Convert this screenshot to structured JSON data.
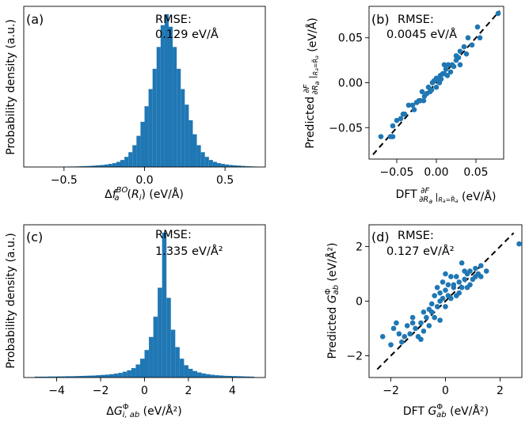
{
  "chart_data": [
    {
      "id": "a",
      "type": "bar",
      "panel_label": "(a)",
      "annotation": [
        "RMSE:",
        "0.129 eV/Å"
      ],
      "xlabel": "Δf_a^{BO}(R_i) (eV/Å)",
      "ylabel": "Probability density (a.u.)",
      "xlim": [
        -0.75,
        0.75
      ],
      "xticks": [
        -0.5,
        0.0,
        0.5
      ],
      "xtick_labels": [
        "−0.5",
        "0.0",
        "0.5"
      ],
      "bin_width": 0.025,
      "bin_start": -0.5,
      "values": [
        0.2,
        0.3,
        0.3,
        0.4,
        0.5,
        0.6,
        0.7,
        0.9,
        1.1,
        1.3,
        1.6,
        2.0,
        2.5,
        3.3,
        4.5,
        6.5,
        9.5,
        14,
        20,
        29,
        39,
        50,
        63,
        77,
        91,
        98,
        90,
        77,
        63,
        50,
        40,
        30,
        21,
        14,
        9.5,
        6.5,
        4.5,
        3.3,
        2.5,
        2.0,
        1.6,
        1.3,
        1.1,
        0.9,
        0.7,
        0.5,
        0.4,
        0.3
      ]
    },
    {
      "id": "b",
      "type": "scatter",
      "panel_label": "(b)",
      "annotation": [
        "RMSE:",
        "0.0045 eV/Å"
      ],
      "xlabel": "DFT ∂F/∂R_a|_{R_a=R̃_a} (eV/Å)",
      "ylabel": "Predicted ∂F/∂R_a|_{R_a=R̃_a} (eV/Å)",
      "xlim": [
        -0.085,
        0.085
      ],
      "ylim": [
        -0.085,
        0.085
      ],
      "xticks": [
        -0.05,
        0.0,
        0.05
      ],
      "xtick_labels": [
        "−0.05",
        "0.00",
        "0.05"
      ],
      "yticks": [
        -0.05,
        0.0,
        0.05
      ],
      "ytick_labels": [
        "−0.05",
        "0.00",
        "0.05"
      ],
      "diagonal": [
        -0.08,
        0.08
      ],
      "points": [
        [
          0.052,
          0.062
        ],
        [
          0.04,
          0.05
        ],
        [
          0.025,
          0.03
        ],
        [
          0.02,
          0.02
        ],
        [
          0.015,
          0.02
        ],
        [
          0.01,
          0.01
        ],
        [
          0.012,
          0.015
        ],
        [
          0.005,
          0.008
        ],
        [
          0.0,
          0.005
        ],
        [
          -0.005,
          0.0
        ],
        [
          -0.01,
          -0.005
        ],
        [
          -0.015,
          -0.015
        ],
        [
          -0.02,
          -0.02
        ],
        [
          -0.025,
          -0.022
        ],
        [
          -0.03,
          -0.025
        ],
        [
          -0.04,
          -0.035
        ],
        [
          -0.05,
          -0.042
        ],
        [
          -0.055,
          -0.048
        ],
        [
          -0.058,
          -0.06
        ],
        [
          -0.055,
          -0.06
        ],
        [
          0.03,
          0.035
        ],
        [
          0.035,
          0.04
        ],
        [
          0.045,
          0.042
        ],
        [
          0.025,
          0.025
        ],
        [
          0.008,
          0.01
        ],
        [
          0.002,
          0.003
        ],
        [
          -0.008,
          -0.01
        ],
        [
          -0.012,
          -0.012
        ],
        [
          -0.018,
          -0.01
        ],
        [
          -0.022,
          -0.02
        ],
        [
          -0.035,
          -0.025
        ],
        [
          -0.045,
          -0.04
        ],
        [
          0.018,
          0.012
        ],
        [
          0.028,
          0.028
        ],
        [
          0.0,
          -0.005
        ],
        [
          -0.003,
          0.002
        ],
        [
          0.006,
          0.004
        ],
        [
          0.014,
          0.008
        ],
        [
          0.022,
          0.018
        ],
        [
          0.038,
          0.032
        ],
        [
          -0.028,
          -0.03
        ],
        [
          -0.016,
          -0.02
        ],
        [
          -0.006,
          -0.008
        ],
        [
          0.004,
          0.0
        ],
        [
          0.03,
          0.02
        ],
        [
          0.01,
          0.02
        ],
        [
          0.078,
          0.077
        ],
        [
          -0.07,
          -0.06
        ],
        [
          -0.042,
          -0.035
        ],
        [
          0.055,
          0.05
        ]
      ]
    },
    {
      "id": "c",
      "type": "bar",
      "panel_label": "(c)",
      "annotation": [
        "RMSE:",
        "1.335 eV/Å²"
      ],
      "xlabel": "ΔG^Φ_{i,ab} (eV/Å²)",
      "ylabel": "Probability density (a.u.)",
      "xlim": [
        -5.5,
        5.5
      ],
      "xticks": [
        -4,
        -2,
        0,
        2,
        4
      ],
      "xtick_labels": [
        "−4",
        "−2",
        "0",
        "2",
        "4"
      ],
      "bin_width": 0.2,
      "bin_start": -5.0,
      "values": [
        0.6,
        0.6,
        0.6,
        0.7,
        0.7,
        0.8,
        0.8,
        0.9,
        0.9,
        1.0,
        1.1,
        1.2,
        1.3,
        1.4,
        1.6,
        1.8,
        2.0,
        2.3,
        2.7,
        3.2,
        4.0,
        5.0,
        6.5,
        9,
        13,
        19,
        28,
        42,
        62,
        100,
        55,
        33,
        21,
        13,
        8.5,
        6,
        4.5,
        3.5,
        2.8,
        2.3,
        1.9,
        1.6,
        1.4,
        1.2,
        1.1,
        1.0,
        0.9,
        0.8,
        0.7,
        0.6
      ]
    },
    {
      "id": "d",
      "type": "scatter",
      "panel_label": "(d)",
      "annotation": [
        "RMSE:",
        "0.127 eV/Å²"
      ],
      "xlabel": "DFT G^Φ_{ab} (eV/Å²)",
      "ylabel": "Predicted G^Φ_{ab} (eV/Å²)",
      "xlim": [
        -2.8,
        2.8
      ],
      "ylim": [
        -2.8,
        2.8
      ],
      "xticks": [
        -2,
        0,
        2
      ],
      "xtick_labels": [
        "−2",
        "0",
        "2"
      ],
      "yticks": [
        -2,
        0,
        2
      ],
      "ytick_labels": [
        "−2",
        "0",
        "2"
      ],
      "diagonal": [
        -2.5,
        2.5
      ],
      "points": [
        [
          2.7,
          2.1
        ],
        [
          1.3,
          1.3
        ],
        [
          1.1,
          1.2
        ],
        [
          0.9,
          1.1
        ],
        [
          0.8,
          1.0
        ],
        [
          0.7,
          0.8
        ],
        [
          0.5,
          0.7
        ],
        [
          0.3,
          0.5
        ],
        [
          0.1,
          0.2
        ],
        [
          -0.1,
          0.1
        ],
        [
          -0.3,
          -0.2
        ],
        [
          -0.5,
          -0.4
        ],
        [
          -0.7,
          -0.6
        ],
        [
          -0.9,
          -0.8
        ],
        [
          -1.1,
          -1.0
        ],
        [
          -1.3,
          -1.2
        ],
        [
          -1.5,
          -1.3
        ],
        [
          -1.6,
          -1.5
        ],
        [
          -2.3,
          -1.3
        ],
        [
          -1.9,
          -1.0
        ],
        [
          -0.8,
          -0.4
        ],
        [
          -1.2,
          -0.6
        ],
        [
          0.4,
          0.2
        ],
        [
          0.6,
          0.5
        ],
        [
          0.2,
          0.1
        ],
        [
          0.0,
          -0.2
        ],
        [
          -0.2,
          0.0
        ],
        [
          -0.4,
          -0.6
        ],
        [
          -0.6,
          -0.3
        ],
        [
          1.0,
          0.8
        ],
        [
          1.2,
          1.0
        ],
        [
          0.9,
          0.6
        ],
        [
          0.5,
          0.3
        ],
        [
          0.3,
          0.6
        ],
        [
          0.0,
          0.4
        ],
        [
          -0.2,
          0.3
        ],
        [
          -0.5,
          -0.1
        ],
        [
          -0.8,
          -1.1
        ],
        [
          -1.0,
          -1.3
        ],
        [
          -1.2,
          -0.8
        ],
        [
          -0.3,
          0.5
        ],
        [
          0.1,
          0.6
        ],
        [
          0.4,
          0.9
        ],
        [
          0.7,
          1.1
        ],
        [
          1.1,
          0.9
        ],
        [
          -1.4,
          -0.9
        ],
        [
          -0.9,
          -1.4
        ],
        [
          -1.7,
          -1.2
        ],
        [
          -0.6,
          -0.9
        ],
        [
          0.2,
          0.9
        ],
        [
          -0.1,
          0.7
        ],
        [
          0.8,
          0.5
        ],
        [
          1.3,
          0.9
        ],
        [
          -2.0,
          -1.6
        ],
        [
          -1.8,
          -0.8
        ],
        [
          -0.4,
          0.2
        ],
        [
          0.6,
          1.4
        ],
        [
          0.0,
          1.0
        ],
        [
          -0.2,
          -0.7
        ],
        [
          1.5,
          1.1
        ]
      ]
    }
  ]
}
